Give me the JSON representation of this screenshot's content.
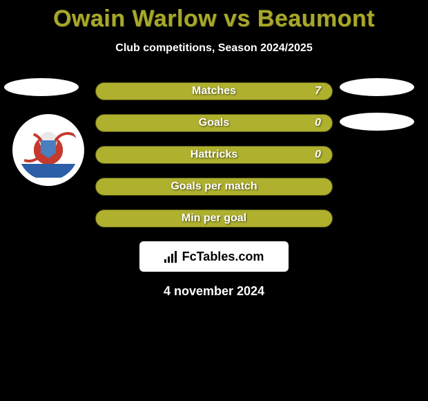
{
  "title": "Owain Warlow vs Beaumont",
  "subtitle": "Club competitions, Season 2024/2025",
  "date": "4 november 2024",
  "source_label": "FcTables.com",
  "colors": {
    "accent": "#a7a82a",
    "bar_fill": "#aeb02e",
    "background": "#000000",
    "text": "#ffffff"
  },
  "stats": [
    {
      "label": "Matches",
      "value": "7"
    },
    {
      "label": "Goals",
      "value": "0"
    },
    {
      "label": "Hattricks",
      "value": "0"
    },
    {
      "label": "Goals per match",
      "value": ""
    },
    {
      "label": "Min per goal",
      "value": ""
    }
  ]
}
